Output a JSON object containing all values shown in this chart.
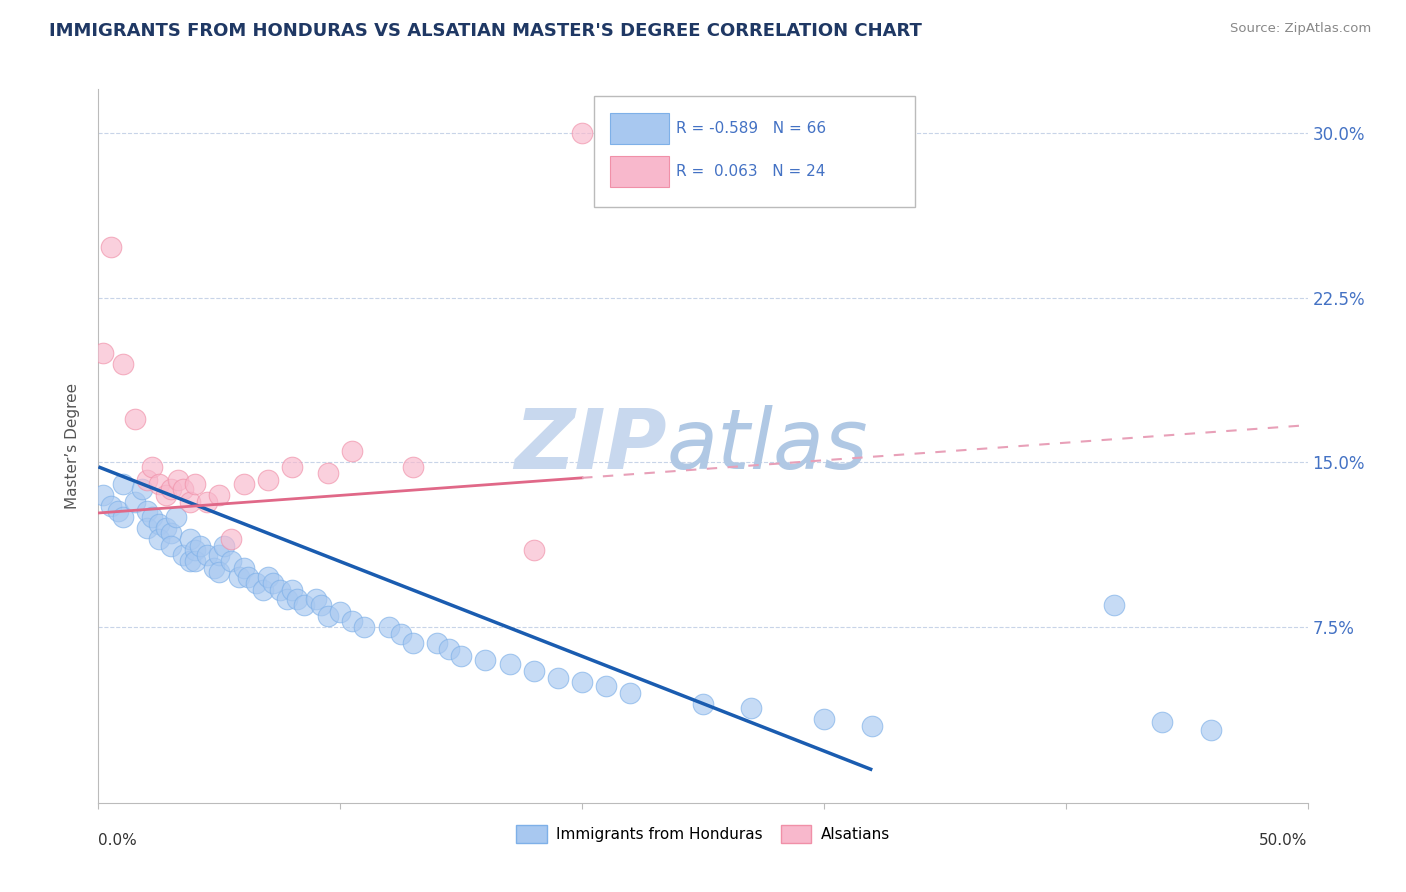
{
  "title": "IMMIGRANTS FROM HONDURAS VS ALSATIAN MASTER'S DEGREE CORRELATION CHART",
  "source": "Source: ZipAtlas.com",
  "ylabel": "Master’s Degree",
  "xlim": [
    0.0,
    0.5
  ],
  "ylim": [
    -0.005,
    0.32
  ],
  "ytick_positions": [
    0.075,
    0.15,
    0.225,
    0.3
  ],
  "ytick_labels": [
    "7.5%",
    "15.0%",
    "22.5%",
    "30.0%"
  ],
  "xtick_positions": [
    0.0,
    0.1,
    0.2,
    0.3,
    0.4,
    0.5
  ],
  "blue_color": "#A8C8F0",
  "blue_edge_color": "#7EB0E8",
  "pink_color": "#F8B8CC",
  "pink_edge_color": "#F090A8",
  "blue_line_color": "#1A5CB0",
  "pink_line_color": "#E06888",
  "pink_dash_color": "#E8A0B8",
  "background_color": "#FFFFFF",
  "grid_color": "#C8D4E8",
  "title_color": "#1F3864",
  "source_color": "#888888",
  "axis_label_color": "#555555",
  "right_tick_color": "#4472C4",
  "blue_scatter_x": [
    0.002,
    0.005,
    0.008,
    0.01,
    0.01,
    0.015,
    0.018,
    0.02,
    0.02,
    0.022,
    0.025,
    0.025,
    0.028,
    0.03,
    0.03,
    0.032,
    0.035,
    0.038,
    0.038,
    0.04,
    0.04,
    0.042,
    0.045,
    0.048,
    0.05,
    0.05,
    0.052,
    0.055,
    0.058,
    0.06,
    0.062,
    0.065,
    0.068,
    0.07,
    0.072,
    0.075,
    0.078,
    0.08,
    0.082,
    0.085,
    0.09,
    0.092,
    0.095,
    0.1,
    0.105,
    0.11,
    0.12,
    0.125,
    0.13,
    0.14,
    0.145,
    0.15,
    0.16,
    0.17,
    0.18,
    0.19,
    0.2,
    0.21,
    0.22,
    0.25,
    0.27,
    0.3,
    0.32,
    0.42,
    0.44,
    0.46
  ],
  "blue_scatter_y": [
    0.135,
    0.13,
    0.128,
    0.14,
    0.125,
    0.132,
    0.138,
    0.128,
    0.12,
    0.125,
    0.122,
    0.115,
    0.12,
    0.118,
    0.112,
    0.125,
    0.108,
    0.115,
    0.105,
    0.11,
    0.105,
    0.112,
    0.108,
    0.102,
    0.108,
    0.1,
    0.112,
    0.105,
    0.098,
    0.102,
    0.098,
    0.095,
    0.092,
    0.098,
    0.095,
    0.092,
    0.088,
    0.092,
    0.088,
    0.085,
    0.088,
    0.085,
    0.08,
    0.082,
    0.078,
    0.075,
    0.075,
    0.072,
    0.068,
    0.068,
    0.065,
    0.062,
    0.06,
    0.058,
    0.055,
    0.052,
    0.05,
    0.048,
    0.045,
    0.04,
    0.038,
    0.033,
    0.03,
    0.085,
    0.032,
    0.028
  ],
  "pink_scatter_x": [
    0.002,
    0.005,
    0.01,
    0.015,
    0.02,
    0.022,
    0.025,
    0.028,
    0.03,
    0.033,
    0.035,
    0.038,
    0.04,
    0.045,
    0.05,
    0.055,
    0.06,
    0.07,
    0.08,
    0.095,
    0.105,
    0.13,
    0.18,
    0.2
  ],
  "pink_scatter_y": [
    0.2,
    0.248,
    0.195,
    0.17,
    0.142,
    0.148,
    0.14,
    0.135,
    0.138,
    0.142,
    0.138,
    0.132,
    0.14,
    0.132,
    0.135,
    0.115,
    0.14,
    0.142,
    0.148,
    0.145,
    0.155,
    0.148,
    0.11,
    0.3
  ],
  "blue_line_x": [
    0.0,
    0.32
  ],
  "blue_line_y": [
    0.148,
    0.01
  ],
  "pink_solid_line_x": [
    0.0,
    0.2
  ],
  "pink_solid_line_y": [
    0.127,
    0.143
  ],
  "pink_dash_line_x": [
    0.2,
    0.5
  ],
  "pink_dash_line_y": [
    0.143,
    0.167
  ]
}
